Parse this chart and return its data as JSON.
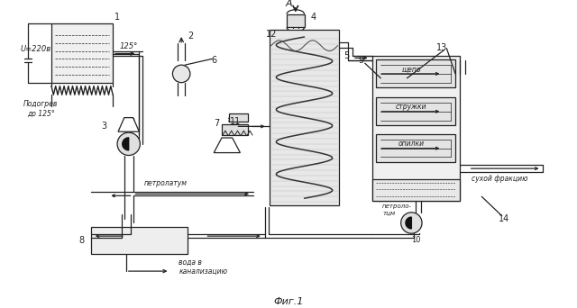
{
  "background": "#ffffff",
  "lc": "#222222",
  "fig_caption": "Фиг.1",
  "label_A": "A",
  "label_U": "U=220в",
  "label_heat": "Подогрев\nдo 125°",
  "label_125": "125°",
  "label_petrolatum1": "петролатум",
  "label_petrolatum2": "петроло-\nтцм",
  "label_water": "вода в\nканализацию",
  "label_dry": "сухой фракцию",
  "label_shchepo": "щепо",
  "label_struzhki": "стружки",
  "label_opilki": "опилки",
  "n1": "1",
  "n2": "2",
  "n3": "3",
  "n4": "4",
  "n5": "5",
  "n6": "6",
  "n7": "7",
  "n8": "8",
  "n9": "9",
  "n10": "10",
  "n11": "11",
  "n12": "12",
  "n13": "13",
  "n14": "14"
}
